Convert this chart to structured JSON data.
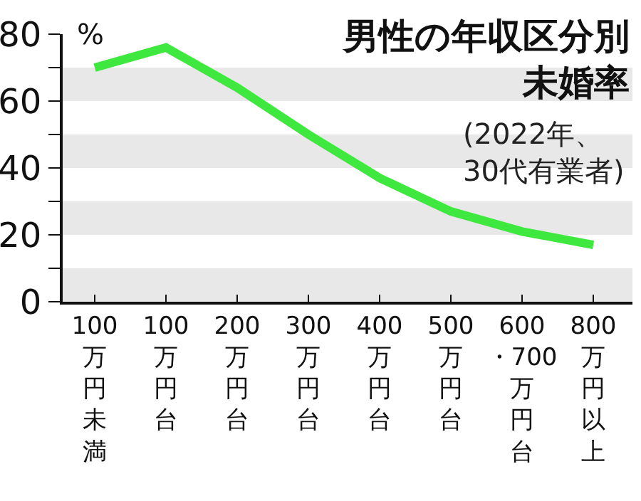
{
  "chart_data": {
    "type": "line",
    "title": "男性の年収区分別未婚率",
    "subtitle": "(2022年、\n30代有業者)",
    "ylabel": "%",
    "categories": [
      "100万円未満",
      "100万円台",
      "200万円台",
      "300万円台",
      "400万円台",
      "500万円台",
      "600・700万円台",
      "800万円以上"
    ],
    "series": [
      {
        "color": "#3ee83e",
        "values": [
          70,
          76,
          64,
          50,
          37,
          27,
          21,
          17
        ]
      }
    ],
    "ylim": [
      0,
      80
    ],
    "yticks": [
      0,
      {
        "value": 10,
        "label": null
      },
      20,
      {
        "value": 30,
        "label": null
      },
      40,
      {
        "value": 50,
        "label": null
      },
      60,
      {
        "value": 70,
        "label": null
      },
      80
    ],
    "bands": [
      {
        "axis": "y",
        "from": 0,
        "to": 10,
        "color": "#e8e8e8"
      },
      {
        "axis": "y",
        "from": 20,
        "to": 30,
        "color": "#e8e8e8"
      },
      {
        "axis": "y",
        "from": 40,
        "to": 50,
        "color": "#e8e8e8"
      },
      {
        "axis": "y",
        "from": 60,
        "to": 70,
        "color": "#e8e8e8"
      }
    ],
    "grid": false,
    "marker": "none",
    "line_style": "solid"
  }
}
